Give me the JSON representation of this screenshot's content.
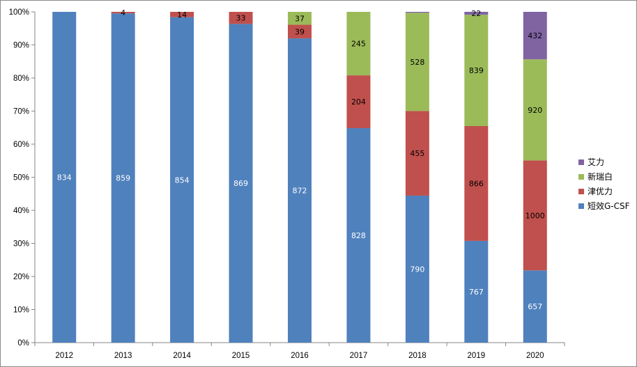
{
  "chart_data": {
    "type": "bar",
    "stacked": "percent",
    "categories": [
      "2012",
      "2013",
      "2014",
      "2015",
      "2016",
      "2017",
      "2018",
      "2019",
      "2020"
    ],
    "series": [
      {
        "name": "短效G-CSF",
        "color": "#4f81bd",
        "label_color": "#ffffff",
        "values": [
          834,
          859,
          854,
          869,
          872,
          828,
          790,
          767,
          657
        ]
      },
      {
        "name": "津优力",
        "color": "#c0504d",
        "label_color": "#000000",
        "values": [
          0,
          4,
          14,
          33,
          39,
          204,
          455,
          866,
          1000
        ]
      },
      {
        "name": "新瑞白",
        "color": "#9bbb59",
        "label_color": "#000000",
        "values": [
          0,
          0,
          0,
          0,
          37,
          245,
          528,
          839,
          920
        ]
      },
      {
        "name": "艾力",
        "color": "#8064a2",
        "label_color": "#000000",
        "values": [
          0,
          0,
          0,
          0,
          0,
          0,
          5,
          22,
          432
        ]
      }
    ],
    "visible_labels": [
      [
        true,
        true,
        true,
        true,
        true,
        true,
        true,
        true,
        true
      ],
      [
        false,
        true,
        true,
        true,
        true,
        true,
        true,
        true,
        true
      ],
      [
        false,
        false,
        false,
        false,
        true,
        true,
        true,
        true,
        true
      ],
      [
        false,
        false,
        false,
        false,
        false,
        false,
        false,
        true,
        true
      ]
    ],
    "y_ticks": [
      "0%",
      "10%",
      "20%",
      "30%",
      "40%",
      "50%",
      "60%",
      "70%",
      "80%",
      "90%",
      "100%"
    ],
    "ylim": [
      0,
      100
    ],
    "legend_position": "right",
    "grid": false
  }
}
